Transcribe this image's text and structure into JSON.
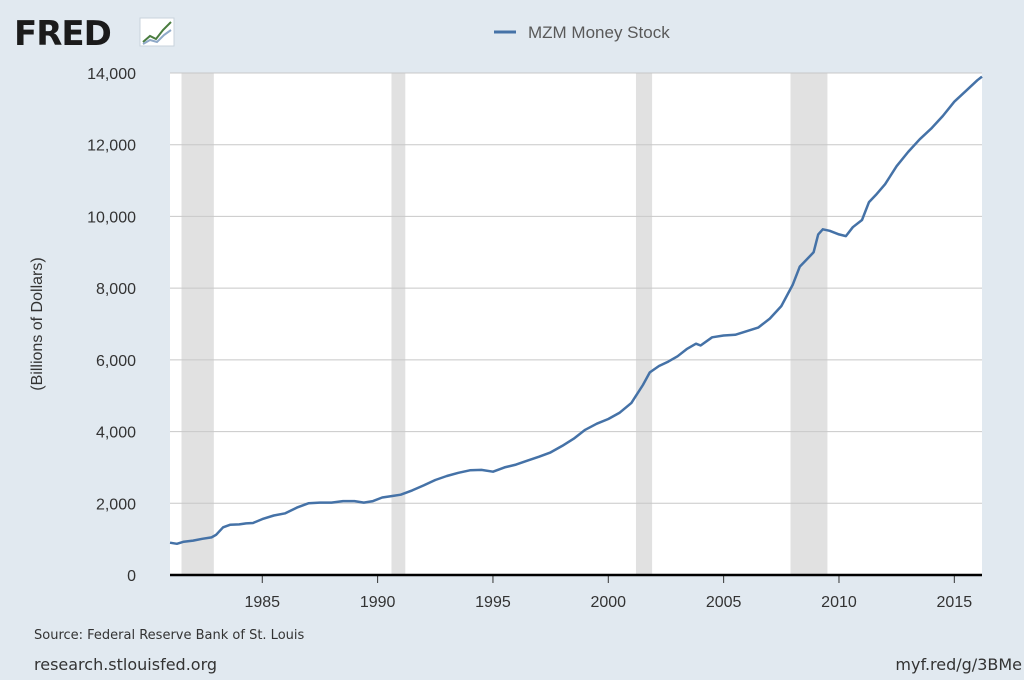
{
  "header": {
    "logo_text": "FRED"
  },
  "chart_data": {
    "type": "line",
    "ylabel": "(Billions of Dollars)",
    "xlim": [
      1981.0,
      2016.2
    ],
    "ylim": [
      0,
      14000
    ],
    "yticks": [
      0,
      2000,
      4000,
      6000,
      8000,
      10000,
      12000,
      14000
    ],
    "ytick_labels": [
      "0",
      "2,000",
      "4,000",
      "6,000",
      "8,000",
      "10,000",
      "12,000",
      "14,000"
    ],
    "xticks": [
      1985,
      1990,
      1995,
      2000,
      2005,
      2010,
      2015
    ],
    "xtick_labels": [
      "1985",
      "1990",
      "1995",
      "2000",
      "2005",
      "2010",
      "2015"
    ],
    "grid": true,
    "legend_position": "top-center",
    "colors": {
      "line": "#4572a7",
      "recession": "#e1e1e1",
      "background": "#e1e9f0",
      "plot": "#ffffff"
    },
    "recessions": [
      [
        1981.5,
        1982.9
      ],
      [
        1990.6,
        1991.2
      ],
      [
        2001.2,
        2001.9
      ],
      [
        2007.9,
        2009.5
      ]
    ],
    "series": [
      {
        "name": "MZM Money Stock",
        "x": [
          1981.0,
          1981.3,
          1981.6,
          1982.0,
          1982.4,
          1982.8,
          1983.0,
          1983.3,
          1983.6,
          1984.0,
          1984.3,
          1984.6,
          1985.0,
          1985.5,
          1986.0,
          1986.5,
          1987.0,
          1987.5,
          1988.0,
          1988.5,
          1989.0,
          1989.4,
          1989.8,
          1990.2,
          1990.6,
          1991.0,
          1991.5,
          1992.0,
          1992.5,
          1993.0,
          1993.5,
          1994.0,
          1994.5,
          1995.0,
          1995.5,
          1996.0,
          1996.5,
          1997.0,
          1997.5,
          1998.0,
          1998.5,
          1999.0,
          1999.5,
          2000.0,
          2000.5,
          2001.0,
          2001.5,
          2001.8,
          2002.2,
          2002.6,
          2003.0,
          2003.4,
          2003.8,
          2004.0,
          2004.5,
          2005.0,
          2005.5,
          2006.0,
          2006.5,
          2007.0,
          2007.5,
          2008.0,
          2008.3,
          2008.6,
          2008.9,
          2009.1,
          2009.3,
          2009.6,
          2010.0,
          2010.3,
          2010.6,
          2011.0,
          2011.3,
          2011.6,
          2012.0,
          2012.5,
          2013.0,
          2013.5,
          2014.0,
          2014.5,
          2015.0,
          2015.5,
          2016.0,
          2016.2
        ],
        "values": [
          900,
          870,
          930,
          960,
          1010,
          1050,
          1120,
          1330,
          1400,
          1410,
          1440,
          1450,
          1560,
          1660,
          1720,
          1880,
          2000,
          2020,
          2020,
          2060,
          2060,
          2020,
          2060,
          2160,
          2200,
          2240,
          2360,
          2500,
          2650,
          2760,
          2850,
          2920,
          2930,
          2880,
          3000,
          3080,
          3190,
          3300,
          3420,
          3600,
          3800,
          4050,
          4220,
          4350,
          4530,
          4800,
          5300,
          5650,
          5830,
          5950,
          6100,
          6300,
          6450,
          6400,
          6630,
          6680,
          6700,
          6800,
          6900,
          7150,
          7500,
          8100,
          8600,
          8800,
          9000,
          9500,
          9640,
          9600,
          9500,
          9450,
          9700,
          9900,
          10400,
          10600,
          10900,
          11400,
          11800,
          12150,
          12450,
          12800,
          13200,
          13500,
          13800,
          13900
        ]
      }
    ]
  },
  "footer": {
    "source": "Source: Federal Reserve Bank of St. Louis",
    "site": "research.stlouisfed.org",
    "short_url": "myf.red/g/3BMe"
  }
}
